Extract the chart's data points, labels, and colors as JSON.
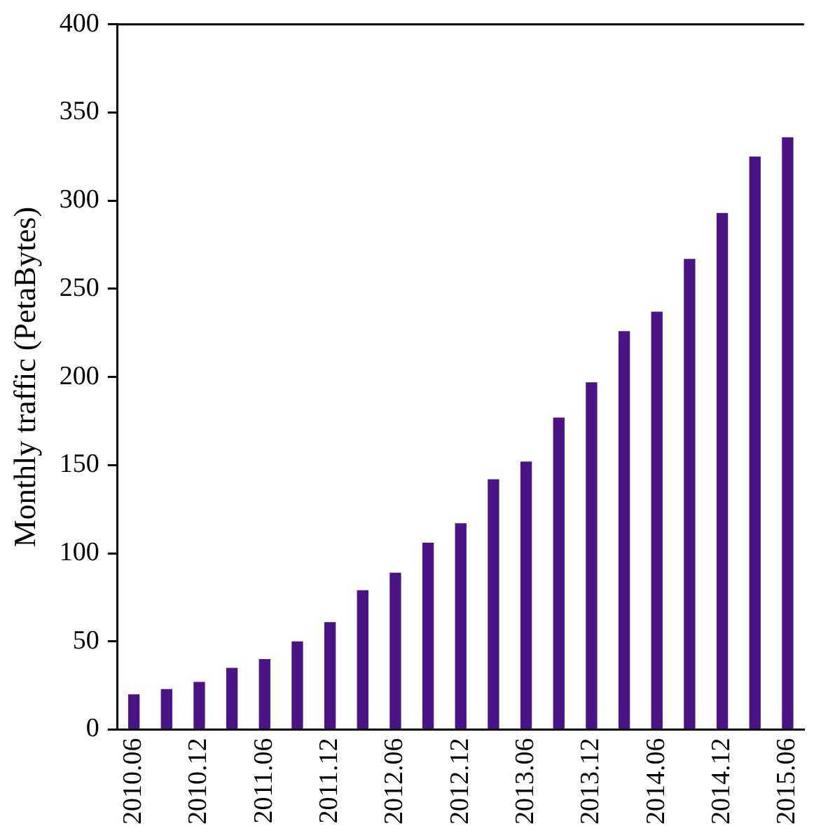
{
  "chart_data": {
    "type": "bar",
    "ylabel": "Monthly traffic (PetaBytes)",
    "categories": [
      "2010.06",
      null,
      "2010.12",
      null,
      "2011.06",
      null,
      "2011.12",
      null,
      "2012.06",
      null,
      "2012.12",
      null,
      "2013.06",
      null,
      "2013.12",
      null,
      "2014.06",
      null,
      "2014.12",
      null,
      "2015.06"
    ],
    "values": [
      20,
      23,
      27,
      35,
      40,
      50,
      61,
      79,
      89,
      106,
      117,
      142,
      152,
      177,
      197,
      226,
      237,
      267,
      293,
      325,
      336
    ],
    "color": "#4a1486",
    "ylim": [
      0,
      400
    ],
    "yticks": [
      0,
      50,
      100,
      150,
      200,
      250,
      300,
      350,
      400
    ],
    "grid": false,
    "legend": false
  }
}
